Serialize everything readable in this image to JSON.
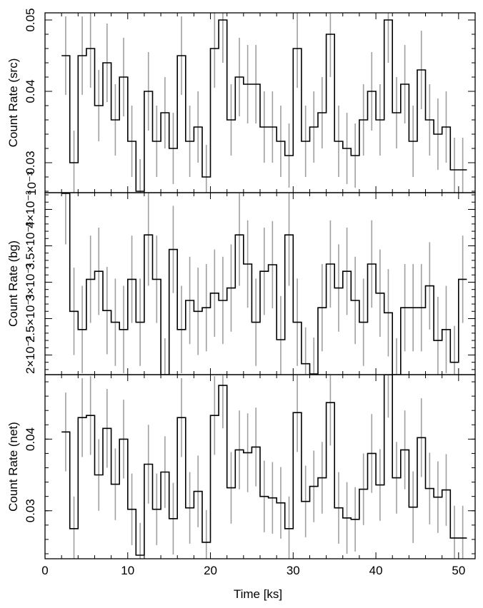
{
  "chart_data": {
    "type": "line",
    "style": "step-histogram with error bars",
    "colors": {
      "line": "#000000",
      "error_bars": "#a0a0a0"
    },
    "xlabel": "Time [ks]",
    "xlim": [
      0,
      52
    ],
    "x_ticks": [
      0,
      10,
      20,
      30,
      40,
      50
    ],
    "x_tick_labels": [
      "0",
      "10",
      "20",
      "30",
      "40",
      "50"
    ],
    "panels": [
      {
        "ylabel": "Count Rate (src)",
        "ylim": [
          0.0258,
          0.051
        ],
        "y_ticks": [
          0.03,
          0.04,
          0.05
        ],
        "y_tick_labels": [
          "0.03",
          "0.04",
          "0.05"
        ],
        "series": [
          {
            "x": [
              2.5,
              3.5,
              4.5,
              5.5,
              6.5,
              7.5,
              8.5,
              9.5,
              10.5,
              11.5,
              12.5,
              13.5,
              14.5,
              15.5,
              16.5,
              17.5,
              18.5,
              19.5,
              20.5,
              21.5,
              22.5,
              23.5,
              24.5,
              25.5,
              26.5,
              27.5,
              28.5,
              29.5,
              30.5,
              31.5,
              32.5,
              33.5,
              34.5,
              35.5,
              36.5,
              37.5,
              38.5,
              39.5,
              40.5,
              41.5,
              42.5,
              43.5,
              44.5,
              45.5,
              46.5,
              47.5,
              48.5,
              49.5,
              50.5
            ],
            "y": [
              0.045,
              0.03,
              0.045,
              0.046,
              0.038,
              0.044,
              0.036,
              0.042,
              0.033,
              0.026,
              0.04,
              0.033,
              0.037,
              0.032,
              0.045,
              0.033,
              0.035,
              0.028,
              0.046,
              0.05,
              0.036,
              0.042,
              0.041,
              0.041,
              0.035,
              0.035,
              0.033,
              0.031,
              0.046,
              0.033,
              0.035,
              0.037,
              0.048,
              0.033,
              0.032,
              0.031,
              0.036,
              0.04,
              0.036,
              0.05,
              0.037,
              0.041,
              0.033,
              0.043,
              0.036,
              0.034,
              0.035,
              0.029,
              0.029
            ],
            "err": [
              0.0055,
              0.0045,
              0.0055,
              0.0055,
              0.005,
              0.0055,
              0.005,
              0.0055,
              0.005,
              0.0045,
              0.0055,
              0.005,
              0.005,
              0.005,
              0.0055,
              0.005,
              0.005,
              0.0045,
              0.0055,
              0.006,
              0.005,
              0.0055,
              0.0055,
              0.0055,
              0.005,
              0.005,
              0.005,
              0.0045,
              0.0055,
              0.005,
              0.005,
              0.005,
              0.006,
              0.005,
              0.005,
              0.0045,
              0.005,
              0.0055,
              0.005,
              0.006,
              0.005,
              0.0055,
              0.005,
              0.0055,
              0.005,
              0.005,
              0.005,
              0.0045,
              0.0045
            ]
          }
        ]
      },
      {
        "ylabel": "Count Rate (bg)",
        "ylim": [
          0.00173,
          0.00423
        ],
        "exponent_label": "10⁻³",
        "y_ticks": [
          0.002,
          0.0025,
          0.003,
          0.0035,
          0.004
        ],
        "y_tick_labels": [
          "2×10⁻³",
          "2.5×10⁻³",
          "3×10⁻³",
          "3.5×10⁻³",
          "4×10⁻³"
        ],
        "series": [
          {
            "x": [
              2.5,
              3.5,
              4.5,
              5.5,
              6.5,
              7.5,
              8.5,
              9.5,
              10.5,
              11.5,
              12.5,
              13.5,
              14.5,
              15.5,
              16.5,
              17.5,
              18.5,
              19.5,
              20.5,
              21.5,
              22.5,
              23.5,
              24.5,
              25.5,
              26.5,
              27.5,
              28.5,
              29.5,
              30.5,
              31.5,
              32.5,
              33.5,
              34.5,
              35.5,
              36.5,
              37.5,
              38.5,
              39.5,
              40.5,
              41.5,
              42.5,
              43.5,
              44.5,
              45.5,
              46.5,
              47.5,
              48.5,
              49.5,
              50.5
            ],
            "y": [
              0.00422,
              0.0026,
              0.00235,
              0.00304,
              0.00315,
              0.00261,
              0.00245,
              0.00235,
              0.00304,
              0.00245,
              0.00365,
              0.00304,
              0.00173,
              0.00345,
              0.00235,
              0.00275,
              0.0026,
              0.00265,
              0.00285,
              0.00275,
              0.00292,
              0.00365,
              0.00325,
              0.00245,
              0.00315,
              0.00324,
              0.00221,
              0.00365,
              0.00245,
              0.00188,
              0.00174,
              0.00265,
              0.00325,
              0.00292,
              0.00315,
              0.00275,
              0.00245,
              0.00325,
              0.00285,
              0.00258,
              0.00173,
              0.00265,
              0.00265,
              0.00265,
              0.00295,
              0.0022,
              0.00235,
              0.0019,
              0.00304
            ],
            "err": [
              0.0007,
              0.0006,
              0.0006,
              0.0006,
              0.0006,
              0.0006,
              0.0006,
              0.0006,
              0.0006,
              0.0006,
              0.0007,
              0.0006,
              0.0005,
              0.0006,
              0.0006,
              0.0006,
              0.0006,
              0.0006,
              0.0006,
              0.0006,
              0.0006,
              0.0007,
              0.0006,
              0.0006,
              0.0006,
              0.0006,
              0.0006,
              0.0007,
              0.0006,
              0.0005,
              0.0005,
              0.0006,
              0.0006,
              0.0006,
              0.0006,
              0.0006,
              0.0006,
              0.0006,
              0.0006,
              0.0006,
              0.0005,
              0.0006,
              0.0006,
              0.0006,
              0.0006,
              0.0006,
              0.0006,
              0.0005,
              0.0006
            ]
          }
        ]
      },
      {
        "ylabel": "Count Rate (net)",
        "ylim": [
          0.0233,
          0.049
        ],
        "y_ticks": [
          0.03,
          0.04
        ],
        "y_tick_labels": [
          "0.03",
          "0.04"
        ],
        "series": [
          {
            "x": [
              2.5,
              3.5,
              4.5,
              5.5,
              6.5,
              7.5,
              8.5,
              9.5,
              10.5,
              11.5,
              12.5,
              13.5,
              14.5,
              15.5,
              16.5,
              17.5,
              18.5,
              19.5,
              20.5,
              21.5,
              22.5,
              23.5,
              24.5,
              25.5,
              26.5,
              27.5,
              28.5,
              29.5,
              30.5,
              31.5,
              32.5,
              33.5,
              34.5,
              35.5,
              36.5,
              37.5,
              38.5,
              39.5,
              40.5,
              41.5,
              42.5,
              43.5,
              44.5,
              45.5,
              46.5,
              47.5,
              48.5,
              49.5,
              50.5
            ],
            "y": [
              0.041,
              0.0275,
              0.043,
              0.0433,
              0.035,
              0.0415,
              0.0337,
              0.04,
              0.0302,
              0.0238,
              0.0365,
              0.0302,
              0.0354,
              0.0289,
              0.043,
              0.0304,
              0.0327,
              0.0256,
              0.0433,
              0.0475,
              0.0332,
              0.0385,
              0.0381,
              0.0389,
              0.032,
              0.0318,
              0.0311,
              0.0275,
              0.0437,
              0.0313,
              0.0334,
              0.0346,
              0.0451,
              0.0304,
              0.029,
              0.0288,
              0.033,
              0.038,
              0.0336,
              0.049,
              0.0346,
              0.0385,
              0.0305,
              0.0402,
              0.0331,
              0.0319,
              0.0329,
              0.0262,
              0.0262
            ],
            "err": [
              0.0055,
              0.0045,
              0.0055,
              0.0055,
              0.005,
              0.0055,
              0.005,
              0.0055,
              0.005,
              0.0045,
              0.0055,
              0.005,
              0.005,
              0.005,
              0.0055,
              0.005,
              0.005,
              0.0045,
              0.0055,
              0.006,
              0.005,
              0.0055,
              0.0055,
              0.0055,
              0.005,
              0.005,
              0.005,
              0.0045,
              0.0055,
              0.005,
              0.005,
              0.005,
              0.006,
              0.005,
              0.005,
              0.0045,
              0.005,
              0.0055,
              0.005,
              0.006,
              0.005,
              0.0055,
              0.005,
              0.0055,
              0.005,
              0.005,
              0.005,
              0.0045,
              0.0045
            ]
          }
        ]
      }
    ]
  }
}
